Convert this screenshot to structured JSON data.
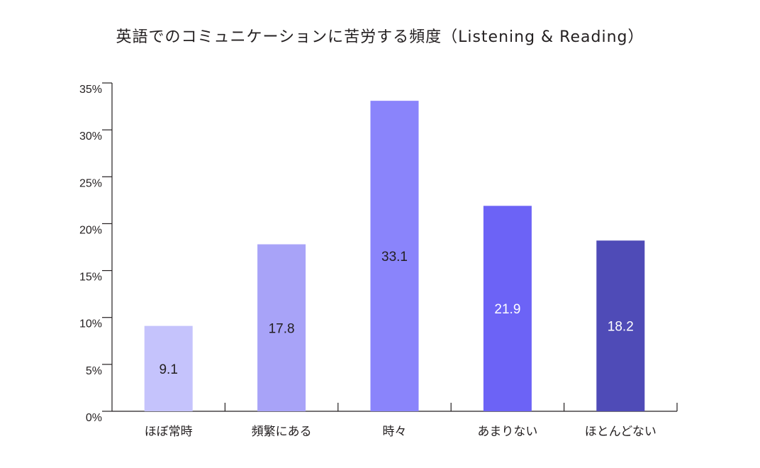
{
  "title": "英語でのコミュニケーションに苦労する頻度（Listening & Reading）",
  "chart_data": {
    "type": "bar",
    "title": "英語でのコミュニケーションに苦労する頻度（Listening & Reading）",
    "categories": [
      "ほぼ常時",
      "頻繁にある",
      "時々",
      "あまりない",
      "ほとんどない"
    ],
    "values": [
      9.1,
      17.8,
      33.1,
      21.9,
      18.2
    ],
    "value_labels": [
      "9.1",
      "17.8",
      "33.1",
      "21.9",
      "18.2"
    ],
    "colors": [
      "#c5c3fc",
      "#a8a3f8",
      "#8a84fb",
      "#6c63f6",
      "#4f4bb7"
    ],
    "label_colors": [
      "#231f20",
      "#231f20",
      "#231f20",
      "#ffffff",
      "#ffffff"
    ],
    "ylim": [
      0,
      35
    ],
    "yticks": [
      0,
      5,
      10,
      15,
      20,
      25,
      30,
      35
    ],
    "ytick_labels": [
      "0%",
      "5%",
      "10%",
      "15%",
      "20%",
      "25%",
      "30%",
      "35%"
    ],
    "xlabel": "",
    "ylabel": "",
    "grid": false,
    "legend": "none"
  }
}
